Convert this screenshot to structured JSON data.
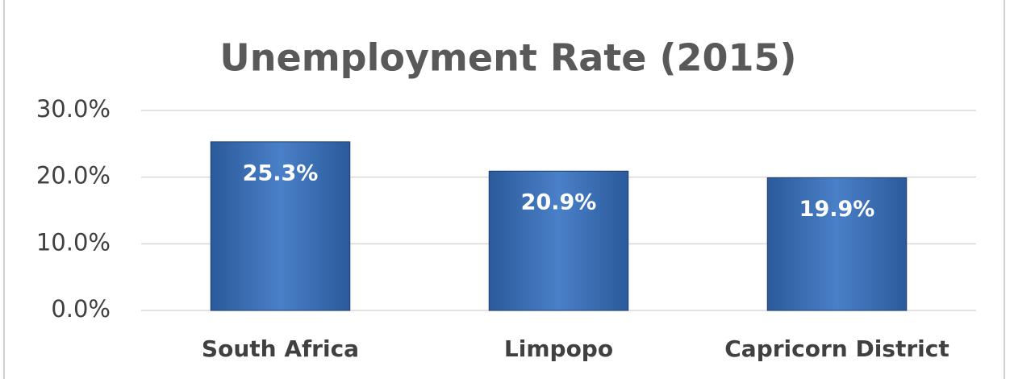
{
  "chart_data": {
    "type": "bar",
    "title": "Unemployment Rate (2015)",
    "categories": [
      "South Africa",
      "Limpopo",
      "Capricorn District"
    ],
    "values": [
      25.3,
      20.9,
      19.9
    ],
    "value_labels": [
      "25.3%",
      "20.9%",
      "19.9%"
    ],
    "color": "#3a6db3",
    "ylim": [
      0,
      30
    ],
    "yticks": [
      {
        "value": 0,
        "label": "0.0%"
      },
      {
        "value": 10,
        "label": "10.0%"
      },
      {
        "value": 20,
        "label": "20.0%"
      },
      {
        "value": 30,
        "label": "30.0%"
      }
    ],
    "grid": true
  }
}
